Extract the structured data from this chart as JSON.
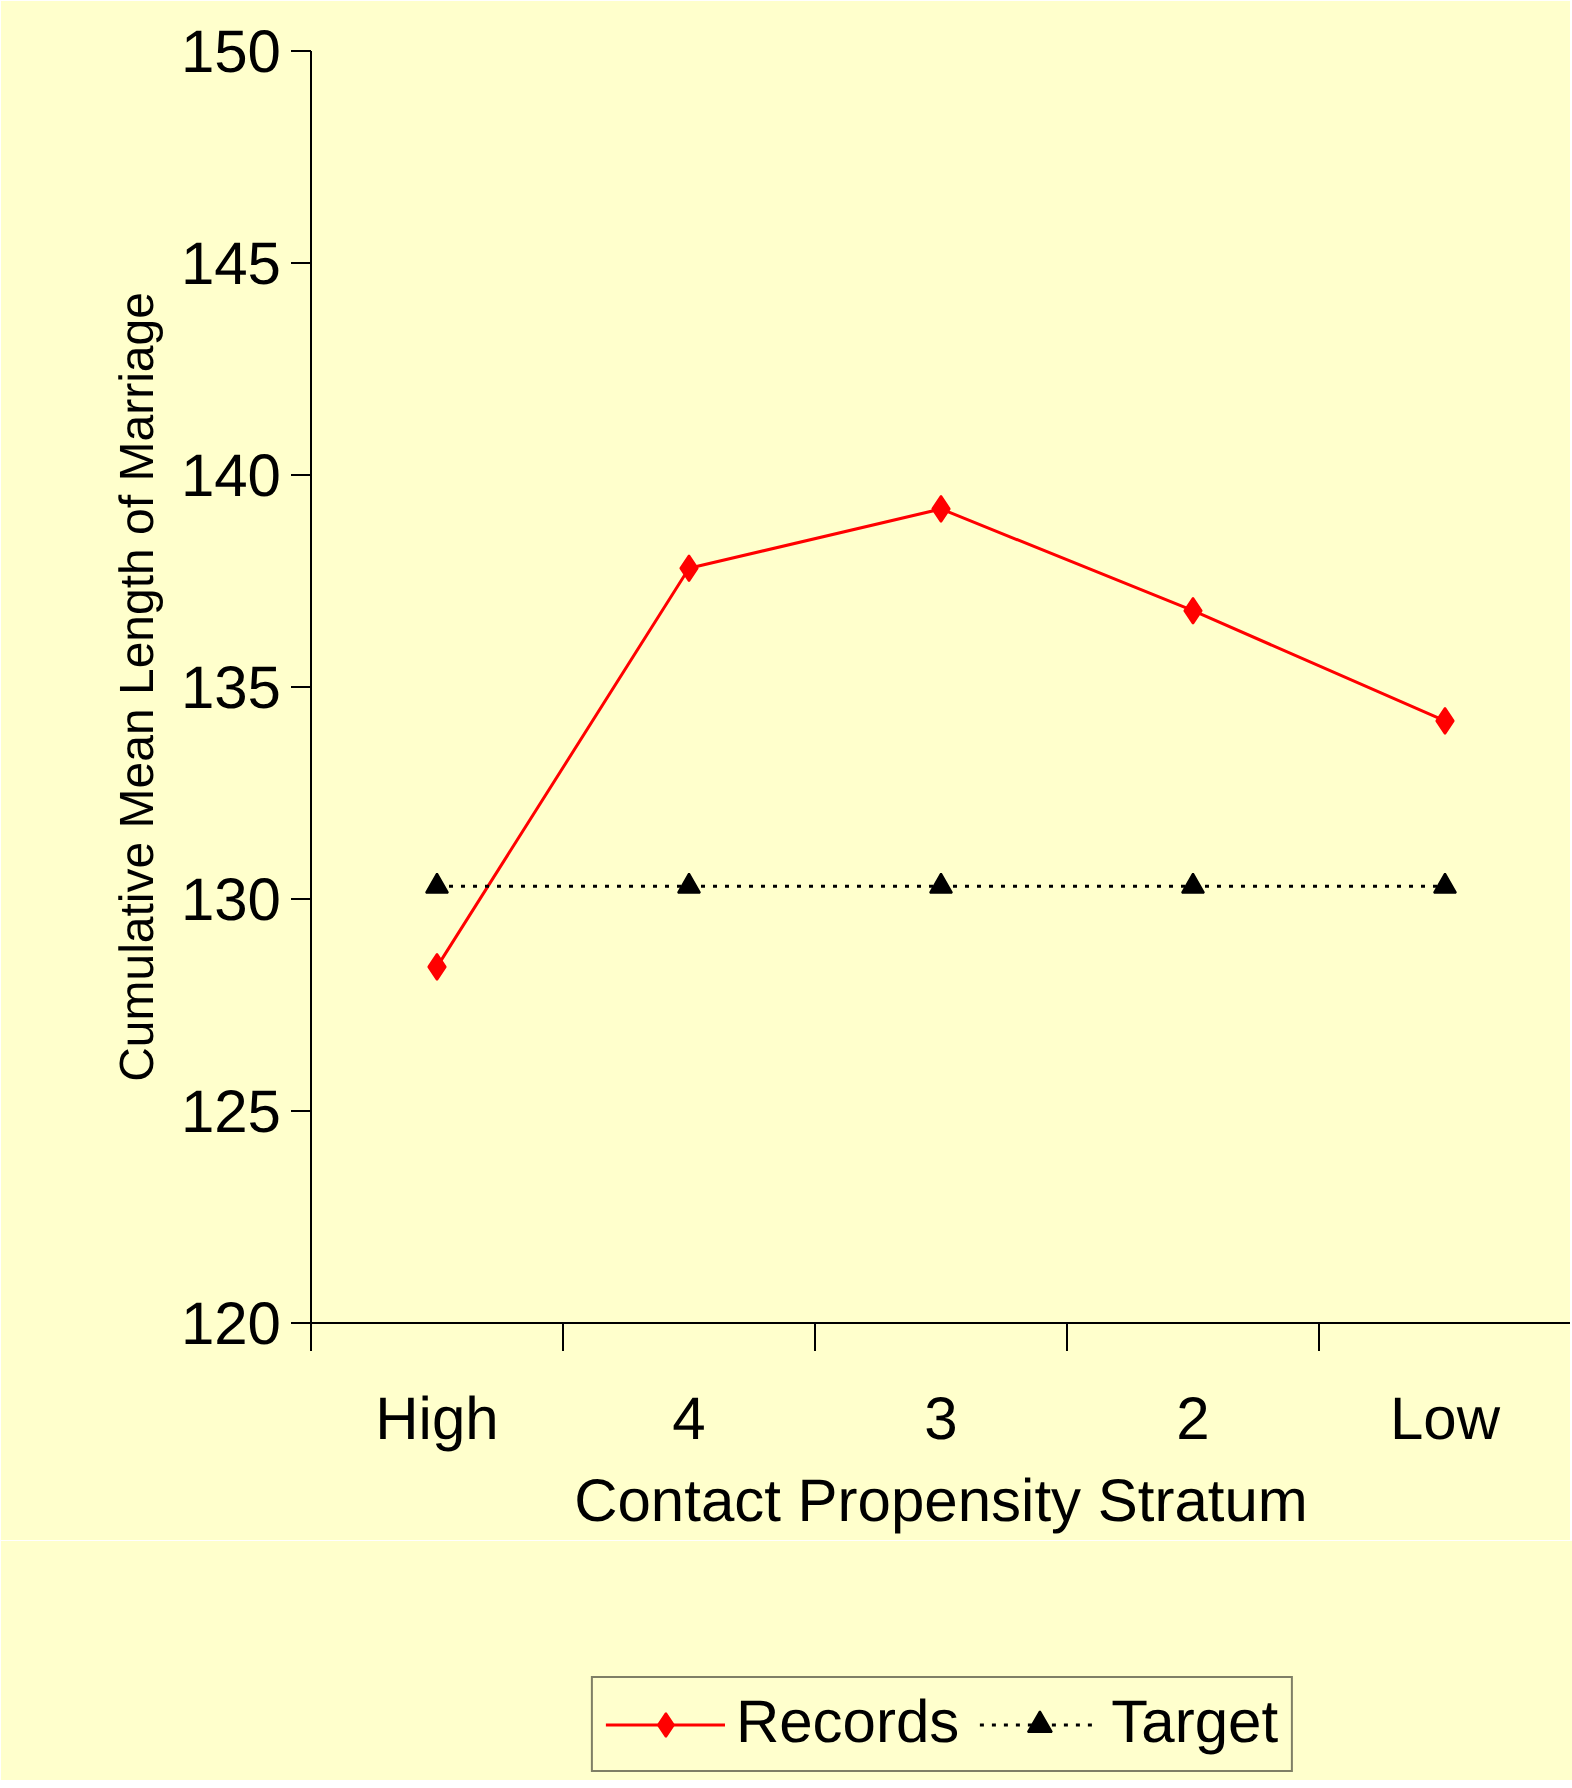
{
  "chart_data": {
    "type": "line",
    "xlabel": "Contact Propensity Stratum",
    "ylabel": "Cumulative Mean Length of Marriage",
    "categories": [
      "High",
      "4",
      "3",
      "2",
      "Low"
    ],
    "series": [
      {
        "name": "Records",
        "color": "#ff0000",
        "values": [
          128.4,
          137.8,
          139.2,
          136.8,
          134.2
        ],
        "marker": "diamond",
        "line_style": "solid"
      },
      {
        "name": "Target",
        "color": "#000000",
        "values": [
          130.3,
          130.3,
          130.3,
          130.3,
          130.3
        ],
        "marker": "triangle",
        "line_style": "dotted"
      }
    ],
    "ylim": [
      120,
      150
    ],
    "yticks": [
      120,
      125,
      130,
      135,
      140,
      145,
      150
    ],
    "grid": false,
    "legend": "bottom"
  }
}
